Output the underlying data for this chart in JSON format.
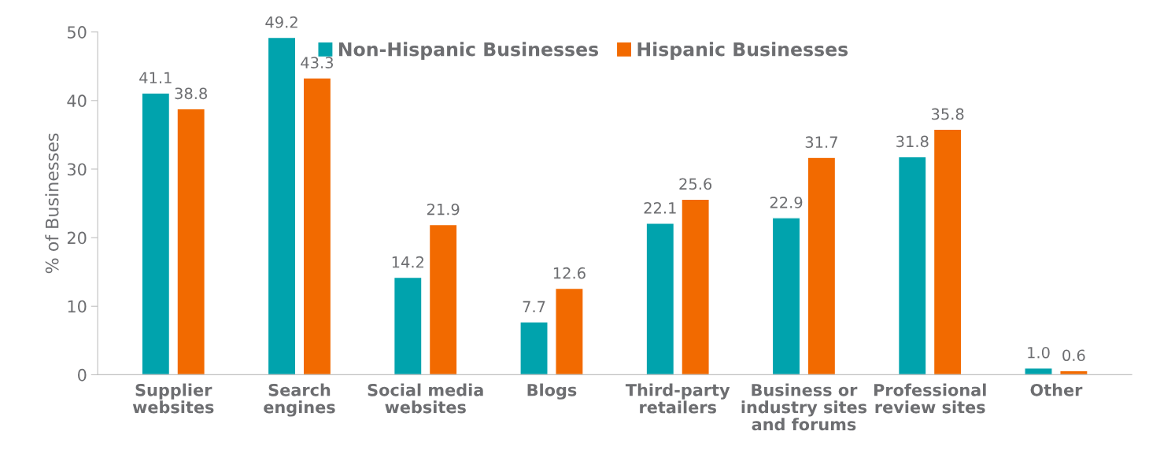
{
  "chart_data": {
    "type": "bar",
    "ylabel": "% of Businesses",
    "categories": [
      "Supplier\nwebsites",
      "Search\nengines",
      "Social media\nwebsites",
      "Blogs",
      "Third-party\nretailers",
      "Business or\nindustry sites\nand forums",
      "Professional\nreview sites",
      "Other"
    ],
    "series": [
      {
        "name": "Non-Hispanic Businesses",
        "color": "#00a3ad",
        "values": [
          41.1,
          49.2,
          14.2,
          7.7,
          22.1,
          22.9,
          31.8,
          1.0
        ],
        "value_labels": [
          "41.1",
          "49.2",
          "14.2",
          "7.7",
          "22.1",
          "22.9",
          "31.8",
          "1.0"
        ]
      },
      {
        "name": "Hispanic Businesses",
        "color": "#f26a00",
        "values": [
          38.8,
          43.3,
          21.9,
          12.6,
          25.6,
          31.7,
          35.8,
          0.6
        ],
        "value_labels": [
          "38.8",
          "43.3",
          "21.9",
          "12.6",
          "25.6",
          "31.7",
          "35.8",
          "0.6"
        ]
      }
    ],
    "ylim": [
      0,
      50
    ],
    "yticks": [
      0,
      10,
      20,
      30,
      40,
      50
    ],
    "grid": false,
    "legend": "top"
  }
}
